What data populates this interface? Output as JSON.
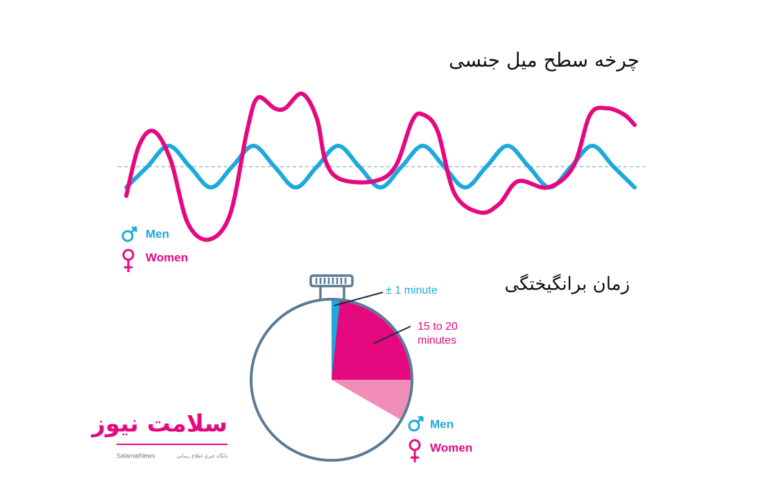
{
  "chart_data": [
    {
      "type": "line",
      "title": "چرخه سطح میل جنسی",
      "series": [
        {
          "name": "Men",
          "color": "#1ea9dc",
          "x": [
            0,
            1,
            2,
            3,
            4,
            5,
            6,
            7,
            8,
            9,
            10,
            11,
            12,
            13,
            14,
            15,
            16,
            17,
            18,
            19,
            20,
            21,
            22,
            23,
            24
          ],
          "values": [
            -1,
            0,
            1,
            0,
            -1,
            0,
            1,
            0,
            -1,
            0,
            1,
            0,
            -1,
            0,
            1,
            0,
            -1,
            0,
            1,
            0,
            -1,
            0,
            1,
            0,
            -1
          ]
        },
        {
          "name": "Women",
          "color": "#e5097f",
          "x": [
            0,
            0.6,
            1.3,
            2.1,
            2.9,
            3.9,
            4.9,
            5.7,
            6.2,
            7.0,
            7.5,
            8.3,
            9.0,
            9.4,
            10.1,
            11.7,
            12.7,
            13.5,
            14.0,
            14.7,
            15.5,
            16.7,
            17.6,
            18.5,
            19.9,
            21.1,
            21.9,
            22.7,
            23.5,
            24.0
          ],
          "values": [
            -1.4,
            1.0,
            1.7,
            0.3,
            -2.7,
            -3.5,
            -2.3,
            1.7,
            3.3,
            2.8,
            2.8,
            3.5,
            2.3,
            0.3,
            -0.6,
            -0.7,
            0,
            2.2,
            2.5,
            1.7,
            -1.3,
            -2.2,
            -1.8,
            -0.7,
            -1.0,
            0,
            2.5,
            2.8,
            2.5,
            2.0
          ]
        }
      ]
    },
    {
      "type": "pie",
      "title": "زمان برانگیختگی",
      "range": [
        0,
        60
      ],
      "slices": [
        {
          "name": "Men",
          "color": "#1ea9dc",
          "values": [
            1
          ],
          "value_label": "± 1 minute"
        },
        {
          "name": "Women",
          "colors": [
            "#e5097f",
            "#f28cb8"
          ],
          "values": [
            15,
            20
          ],
          "value_label": "15 to 20 minutes"
        }
      ]
    }
  ],
  "logo": {
    "name": "سلامت نیوز",
    "latin": "SalamatNews",
    "tagline": "پایگاه خبری اطلاع رسانی"
  }
}
